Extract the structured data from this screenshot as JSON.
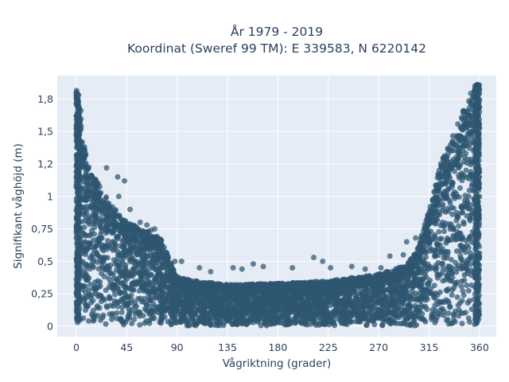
{
  "chart_data": {
    "type": "scatter",
    "title_line1": "År 1979 - 2019",
    "title_line2": "Koordinat (Sweref 99 TM): E 339583, N 6220142",
    "xlabel": "Vågriktning (grader)",
    "ylabel": "Signifikant våghöjd (m)",
    "xlim": [
      -17,
      375
    ],
    "ylim": [
      -0.08,
      1.93
    ],
    "x_ticks": [
      0,
      45,
      90,
      135,
      180,
      225,
      270,
      315,
      360
    ],
    "x_tick_labels": [
      "0",
      "45",
      "90",
      "135",
      "180",
      "225",
      "270",
      "315",
      "360"
    ],
    "y_ticks": [
      0,
      0.25,
      0.5,
      0.75,
      1,
      1.25,
      1.5,
      1.75
    ],
    "y_tick_labels": [
      "0",
      "0,25",
      "0,5",
      "0,75",
      "1",
      "1,2",
      "1,5",
      "1,8"
    ],
    "grid": true,
    "legend": "none",
    "colors": {
      "marker": "#2e5670",
      "plot_background": "#e5ecf6",
      "grid": "#ffffff",
      "text": "#2a3f5f"
    },
    "envelope": {
      "x": [
        0,
        10,
        20,
        30,
        45,
        60,
        75,
        90,
        105,
        135,
        180,
        225,
        270,
        295,
        305,
        315,
        325,
        335,
        345,
        355,
        360
      ],
      "y_max": [
        1.85,
        1.25,
        1.1,
        0.95,
        0.8,
        0.75,
        0.68,
        0.38,
        0.35,
        0.32,
        0.33,
        0.35,
        0.4,
        0.47,
        0.6,
        0.9,
        1.25,
        1.45,
        1.65,
        1.85,
        1.87
      ]
    },
    "outliers": [
      [
        27,
        1.22
      ],
      [
        37,
        1.15
      ],
      [
        43,
        1.12
      ],
      [
        38,
        1.0
      ],
      [
        48,
        0.9
      ],
      [
        57,
        0.8
      ],
      [
        63,
        0.78
      ],
      [
        67,
        0.74
      ],
      [
        70,
        0.75
      ],
      [
        88,
        0.5
      ],
      [
        94,
        0.5
      ],
      [
        110,
        0.45
      ],
      [
        120,
        0.42
      ],
      [
        140,
        0.45
      ],
      [
        148,
        0.44
      ],
      [
        158,
        0.48
      ],
      [
        167,
        0.46
      ],
      [
        193,
        0.45
      ],
      [
        212,
        0.53
      ],
      [
        220,
        0.5
      ],
      [
        227,
        0.45
      ],
      [
        246,
        0.46
      ],
      [
        258,
        0.44
      ],
      [
        272,
        0.45
      ],
      [
        280,
        0.54
      ],
      [
        292,
        0.55
      ],
      [
        295,
        0.65
      ],
      [
        303,
        0.68
      ],
      [
        313,
        0.75
      ],
      [
        320,
        0.85
      ],
      [
        327,
        0.92
      ],
      [
        330,
        1.1
      ],
      [
        335,
        1.35
      ],
      [
        340,
        1.45
      ],
      [
        346,
        1.58
      ],
      [
        352,
        1.72
      ],
      [
        356,
        1.85
      ],
      [
        358,
        1.86
      ],
      [
        2,
        1.78
      ],
      [
        4,
        1.66
      ],
      [
        1,
        1.63
      ]
    ]
  }
}
